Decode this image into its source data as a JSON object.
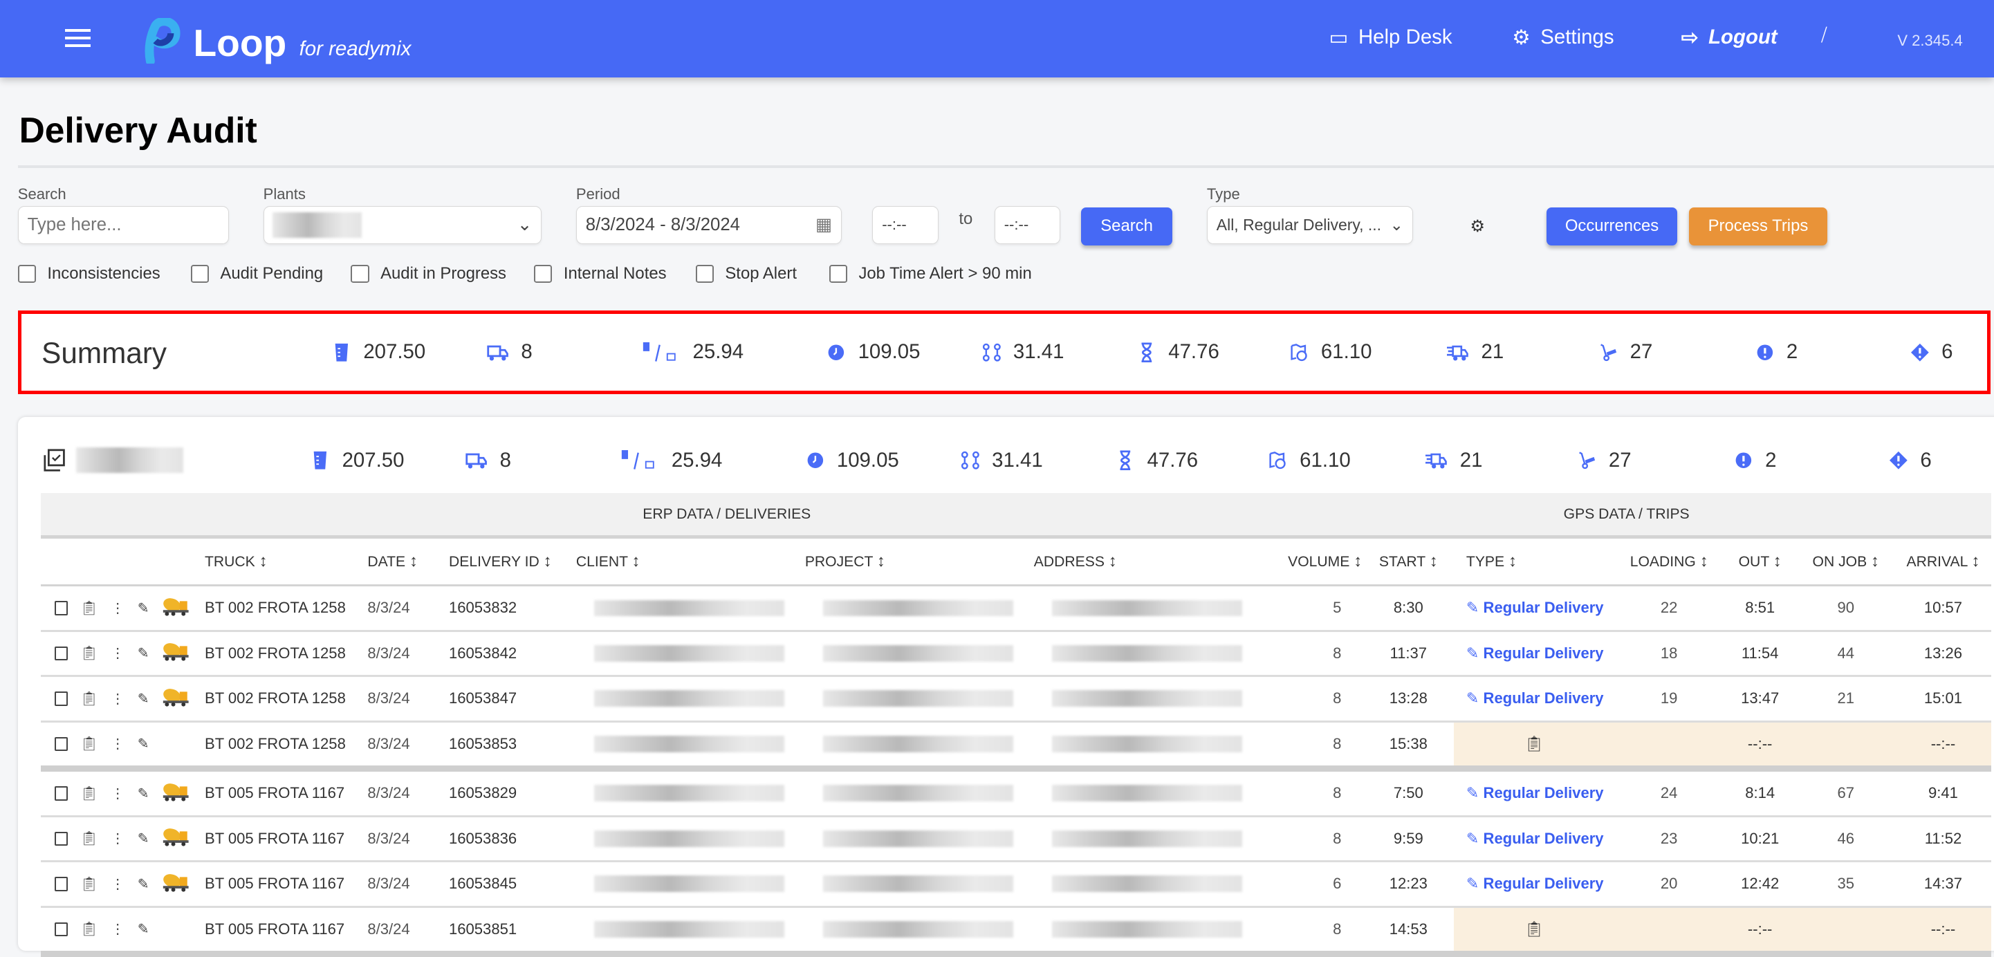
{
  "header": {
    "brand": "Loop",
    "brand_sub": "for readymix",
    "help_desk": "Help Desk",
    "settings": "Settings",
    "logout": "Logout",
    "version": "V 2.345.4",
    "color": "#4669f5"
  },
  "page": {
    "title": "Delivery Audit"
  },
  "filters": {
    "search_label": "Search",
    "search_placeholder": "Type here...",
    "search_value": "",
    "plants_label": "Plants",
    "period_label": "Period",
    "period_value": "8/3/2024 - 8/3/2024",
    "time_from": "--:--",
    "to_label": "to",
    "time_to": "--:--",
    "search_button": "Search",
    "type_label": "Type",
    "type_value": "All, Regular Delivery, ...",
    "occurrences_button": "Occurrences",
    "process_trips_button": "Process Trips",
    "checkboxes": [
      {
        "label": "Inconsistencies",
        "checked": false
      },
      {
        "label": "Audit Pending",
        "checked": false
      },
      {
        "label": "Audit in Progress",
        "checked": false
      },
      {
        "label": "Internal Notes",
        "checked": false
      },
      {
        "label": "Stop Alert",
        "checked": false
      },
      {
        "label": "Job Time Alert > 90 min",
        "checked": false
      }
    ]
  },
  "summary": {
    "title": "Summary",
    "stats": [
      {
        "icon": "volume-icon",
        "value": "207.50"
      },
      {
        "icon": "truck-icon",
        "value": "8"
      },
      {
        "icon": "volume-per-truck-icon",
        "value": "25.94"
      },
      {
        "icon": "clock-icon",
        "value": "109.05"
      },
      {
        "icon": "route-icon",
        "value": "31.41"
      },
      {
        "icon": "hourglass-icon",
        "value": "47.76"
      },
      {
        "icon": "map-clock-icon",
        "value": "61.10"
      },
      {
        "icon": "fast-truck-icon",
        "value": "21"
      },
      {
        "icon": "hand-truck-icon",
        "value": "27"
      },
      {
        "icon": "alert-circle-icon",
        "value": "2"
      },
      {
        "icon": "alert-diamond-icon",
        "value": "6"
      }
    ]
  },
  "group": {
    "stats": [
      "207.50",
      "8",
      "25.94",
      "109.05",
      "31.41",
      "47.76",
      "61.10",
      "21",
      "27",
      "2",
      "6"
    ]
  },
  "table": {
    "erp_label": "ERP DATA / DELIVERIES",
    "gps_label": "GPS DATA / TRIPS",
    "columns": [
      "TRUCK",
      "DATE",
      "DELIVERY ID",
      "CLIENT",
      "PROJECT",
      "ADDRESS",
      "VOLUME",
      "START",
      "TYPE",
      "LOADING",
      "OUT",
      "ON JOB",
      "ARRIVAL"
    ],
    "rows": [
      {
        "truck": "BT 002 FROTA 1258",
        "date": "8/3/24",
        "id": "16053832",
        "volume": "5",
        "start": "8:30",
        "type": "Regular Delivery",
        "loading": "22",
        "out": "8:51",
        "on_job": "90",
        "arrival": "10:57",
        "mixer": true
      },
      {
        "truck": "BT 002 FROTA 1258",
        "date": "8/3/24",
        "id": "16053842",
        "volume": "8",
        "start": "11:37",
        "type": "Regular Delivery",
        "loading": "18",
        "out": "11:54",
        "on_job": "44",
        "arrival": "13:26",
        "mixer": true
      },
      {
        "truck": "BT 002 FROTA 1258",
        "date": "8/3/24",
        "id": "16053847",
        "volume": "8",
        "start": "13:28",
        "type": "Regular Delivery",
        "loading": "19",
        "out": "13:47",
        "on_job": "21",
        "arrival": "15:01",
        "mixer": true
      },
      {
        "truck": "BT 002 FROTA 1258",
        "date": "8/3/24",
        "id": "16053853",
        "volume": "8",
        "start": "15:38",
        "type": null,
        "loading": "",
        "out": "--:--",
        "on_job": "",
        "arrival": "--:--",
        "mixer": false,
        "last": true
      },
      {
        "truck": "BT 005 FROTA 1167",
        "date": "8/3/24",
        "id": "16053829",
        "volume": "8",
        "start": "7:50",
        "type": "Regular Delivery",
        "loading": "24",
        "out": "8:14",
        "on_job": "67",
        "arrival": "9:41",
        "mixer": true
      },
      {
        "truck": "BT 005 FROTA 1167",
        "date": "8/3/24",
        "id": "16053836",
        "volume": "8",
        "start": "9:59",
        "type": "Regular Delivery",
        "loading": "23",
        "out": "10:21",
        "on_job": "46",
        "arrival": "11:52",
        "mixer": true
      },
      {
        "truck": "BT 005 FROTA 1167",
        "date": "8/3/24",
        "id": "16053845",
        "volume": "6",
        "start": "12:23",
        "type": "Regular Delivery",
        "loading": "20",
        "out": "12:42",
        "on_job": "35",
        "arrival": "14:37",
        "mixer": true
      },
      {
        "truck": "BT 005 FROTA 1167",
        "date": "8/3/24",
        "id": "16053851",
        "volume": "8",
        "start": "14:53",
        "type": null,
        "loading": "",
        "out": "--:--",
        "on_job": "",
        "arrival": "--:--",
        "mixer": false,
        "last": true
      }
    ]
  }
}
